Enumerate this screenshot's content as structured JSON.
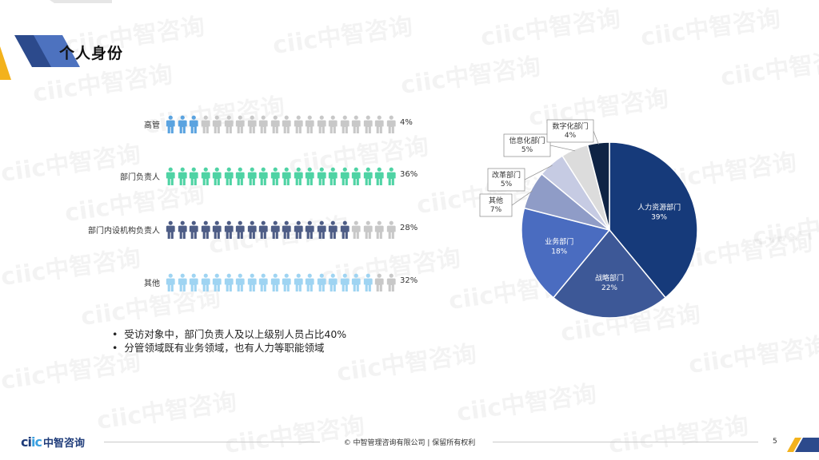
{
  "page": {
    "title": "个人身份",
    "page_number": "5",
    "footer": "© 中智管理咨询有限公司 | 保留所有权利"
  },
  "watermark": "ciic中智咨询",
  "logo": {
    "mark_prefix": "ci",
    "mark_suffix": "ic",
    "text": "中智咨询"
  },
  "colors": {
    "inactive": "#c8c8c8",
    "rows": [
      "#5aa3e0",
      "#4fd3a4",
      "#4e5d86",
      "#9fd4f2"
    ],
    "pie": [
      "#163a7a",
      "#3d5897",
      "#4a6cc0",
      "#8f9cc7",
      "#c6cbe3",
      "#dcdcdc",
      "#0f2445"
    ]
  },
  "pictogram": {
    "total_icons": 20,
    "rows": [
      {
        "label": "高管",
        "value": "4%",
        "filled": 3
      },
      {
        "label": "部门负责人",
        "value": "36%",
        "filled": 20
      },
      {
        "label": "部门内设机构负责人",
        "value": "28%",
        "filled": 16
      },
      {
        "label": "其他",
        "value": "32%",
        "filled": 18
      }
    ]
  },
  "bullets": [
    "受访对象中，部门负责人及以上级别人员占比40%",
    "分管领域既有业务领域，也有人力等职能领域"
  ],
  "chart_data": {
    "type": "pie",
    "slices": [
      {
        "name": "人力资源部门",
        "value": 39,
        "label": "39%"
      },
      {
        "name": "战略部门",
        "value": 22,
        "label": "22%"
      },
      {
        "name": "业务部门",
        "value": 18,
        "label": "18%"
      },
      {
        "name": "其他",
        "value": 7,
        "label": "7%"
      },
      {
        "name": "改革部门",
        "value": 5,
        "label": "5%"
      },
      {
        "name": "信息化部门",
        "value": 5,
        "label": "5%"
      },
      {
        "name": "数字化部门",
        "value": 4,
        "label": "4%"
      }
    ]
  }
}
